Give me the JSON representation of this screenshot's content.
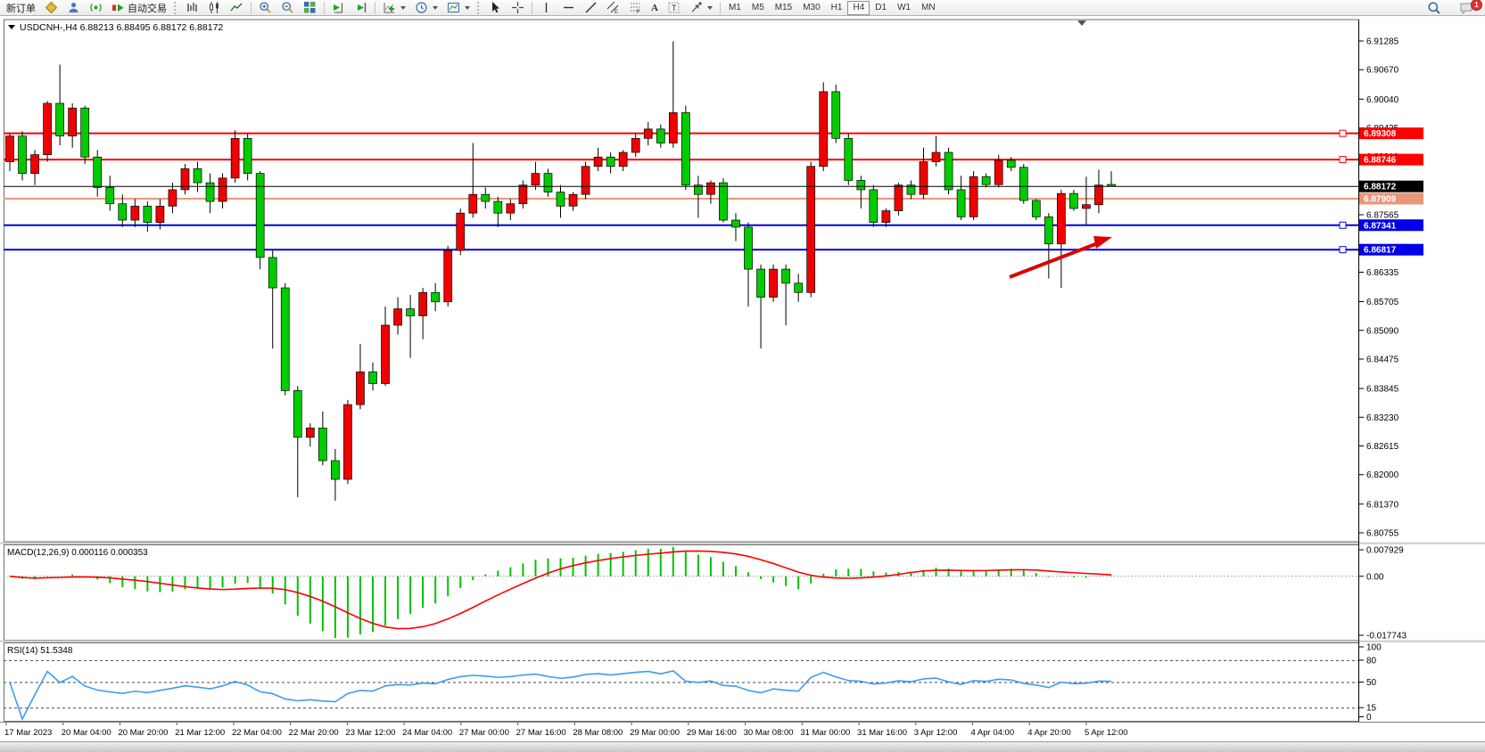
{
  "toolbar": {
    "new_order_label": "新订单",
    "autotrading_label": "自动交易",
    "timeframe_labels": [
      "M1",
      "M5",
      "M15",
      "M30",
      "H1",
      "H4",
      "D1",
      "W1",
      "MN"
    ],
    "active_timeframe": "H4",
    "chat_badge": "1"
  },
  "chart": {
    "title_line": "USDCNH-,H4  6.88213 6.88495 6.88172 6.88172",
    "symbol": "USDCNH-",
    "period": "H4",
    "open": "6.88213",
    "high": "6.88495",
    "low": "6.88172",
    "close": "6.88172",
    "current_price": "6.88172",
    "hlines": [
      {
        "price": "6.89308",
        "color": "red"
      },
      {
        "price": "6.88746",
        "color": "red"
      },
      {
        "price": "6.87909",
        "color": "salmon"
      },
      {
        "price": "6.87341",
        "color": "blue"
      },
      {
        "price": "6.86817",
        "color": "blue"
      }
    ],
    "price_axis_ticks": [
      "6.91285",
      "6.90670",
      "6.90040",
      "6.89425",
      "6.88810",
      "6.88195",
      "6.87565",
      "6.86850",
      "6.86335",
      "6.85705",
      "6.85090",
      "6.84475",
      "6.83845",
      "6.83230",
      "6.82615",
      "6.82000",
      "6.81370",
      "6.80755"
    ],
    "colors": {
      "up_candle": "#F00000",
      "down_candle": "#00CC00",
      "hline_red": "#FE0000",
      "hline_blue": "#0000E8",
      "hline_salmon": "#E9967A",
      "price_line": "#000000",
      "arrow": "#E00000",
      "macd_histogram": "#00C400",
      "macd_signal": "#FF0000",
      "rsi_line": "#3E9BF0"
    }
  },
  "macd_panel": {
    "label": "MACD(12,26,9) 0.000116 0.000353",
    "params": [
      12,
      26,
      9
    ],
    "main_value": "0.000116",
    "signal_value": "0.000353",
    "axis_max": "0.007929",
    "axis_zero": "0.00",
    "axis_min": "-0.017743"
  },
  "rsi_panel": {
    "label": "RSI(14) 51.5348",
    "period": 14,
    "value": "51.5348",
    "level_labels": [
      "100",
      "80",
      "50",
      "15",
      "0"
    ],
    "dashed_levels": [
      80,
      50,
      15
    ]
  },
  "time_axis": {
    "labels": [
      "17 Mar 2023",
      "20 Mar 04:00",
      "20 Mar 20:00",
      "21 Mar 12:00",
      "22 Mar 04:00",
      "22 Mar 20:00",
      "23 Mar 12:00",
      "24 Mar 04:00",
      "27 Mar 00:00",
      "27 Mar 16:00",
      "28 Mar 08:00",
      "29 Mar 00:00",
      "29 Mar 16:00",
      "30 Mar 08:00",
      "31 Mar 00:00",
      "31 Mar 16:00",
      "3 Apr 12:00",
      "4 Apr 04:00",
      "4 Apr 20:00",
      "5 Apr 12:00"
    ]
  },
  "chart_data": {
    "type": "candlestick",
    "symbol": "USDCNH",
    "timeframe": "H4",
    "color_convention": "red-up-green-down",
    "price_range": [
      6.80755,
      6.91285
    ],
    "visible_high": 6.9128,
    "visible_low": 6.8144,
    "horizontal_levels": [
      6.89308,
      6.88746,
      6.87909,
      6.87341,
      6.86817
    ],
    "last_price": 6.88172,
    "indicators": [
      {
        "name": "MACD",
        "params": [
          12,
          26,
          9
        ],
        "current": [
          0.000116,
          0.000353
        ]
      },
      {
        "name": "RSI",
        "params": [
          14
        ],
        "current": 51.5348
      }
    ],
    "candles": [
      [
        6.887,
        6.893,
        6.885,
        6.8925
      ],
      [
        6.8925,
        6.8935,
        6.883,
        6.8845
      ],
      [
        6.8845,
        6.8895,
        6.882,
        6.8885
      ],
      [
        6.8885,
        6.9,
        6.887,
        6.8995
      ],
      [
        6.8995,
        6.9078,
        6.8905,
        6.8925
      ],
      [
        6.8925,
        6.8995,
        6.89,
        6.8985
      ],
      [
        6.8985,
        6.899,
        6.8865,
        6.888
      ],
      [
        6.888,
        6.8895,
        6.8795,
        6.8815
      ],
      [
        6.8815,
        6.884,
        6.8765,
        6.878
      ],
      [
        6.878,
        6.88,
        6.873,
        6.8745
      ],
      [
        6.8745,
        6.879,
        6.873,
        6.8775
      ],
      [
        6.8775,
        6.8785,
        6.872,
        6.874
      ],
      [
        6.874,
        6.879,
        6.8725,
        6.8775
      ],
      [
        6.8775,
        6.8825,
        6.876,
        6.881
      ],
      [
        6.881,
        6.8865,
        6.88,
        6.8855
      ],
      [
        6.8855,
        6.887,
        6.8805,
        6.8825
      ],
      [
        6.8825,
        6.8845,
        6.876,
        6.8785
      ],
      [
        6.8785,
        6.8845,
        6.877,
        6.8835
      ],
      [
        6.8835,
        6.8937,
        6.8825,
        6.892
      ],
      [
        6.892,
        6.893,
        6.883,
        6.8845
      ],
      [
        6.8845,
        6.885,
        6.864,
        6.8665
      ],
      [
        6.8665,
        6.868,
        6.847,
        6.86
      ],
      [
        6.86,
        6.861,
        6.837,
        6.838
      ],
      [
        6.838,
        6.839,
        6.8152,
        6.828
      ],
      [
        6.828,
        6.831,
        6.826,
        6.83
      ],
      [
        6.83,
        6.8335,
        6.822,
        6.823
      ],
      [
        6.823,
        6.8255,
        6.8144,
        6.819
      ],
      [
        6.819,
        6.836,
        6.818,
        6.835
      ],
      [
        6.835,
        6.848,
        6.834,
        6.842
      ],
      [
        6.842,
        6.844,
        6.838,
        6.8395
      ],
      [
        6.8395,
        6.856,
        6.839,
        6.852
      ],
      [
        6.852,
        6.858,
        6.85,
        6.8555
      ],
      [
        6.8555,
        6.8585,
        6.845,
        6.854
      ],
      [
        6.854,
        6.86,
        6.849,
        6.859
      ],
      [
        6.859,
        6.861,
        6.855,
        6.857
      ],
      [
        6.857,
        6.869,
        6.856,
        6.868
      ],
      [
        6.868,
        6.877,
        6.867,
        6.876
      ],
      [
        6.876,
        6.891,
        6.875,
        6.88
      ],
      [
        6.88,
        6.8815,
        6.877,
        6.8785
      ],
      [
        6.8785,
        6.8795,
        6.873,
        6.876
      ],
      [
        6.876,
        6.879,
        6.8745,
        6.878
      ],
      [
        6.878,
        6.883,
        6.877,
        6.882
      ],
      [
        6.882,
        6.887,
        6.881,
        6.8845
      ],
      [
        6.8845,
        6.8855,
        6.8795,
        6.8805
      ],
      [
        6.8805,
        6.882,
        6.875,
        6.8775
      ],
      [
        6.8775,
        6.8805,
        6.8765,
        6.88
      ],
      [
        6.88,
        6.887,
        6.879,
        6.886
      ],
      [
        6.886,
        6.89,
        6.885,
        6.888
      ],
      [
        6.888,
        6.889,
        6.8845,
        6.886
      ],
      [
        6.886,
        6.8895,
        6.885,
        6.889
      ],
      [
        6.889,
        6.893,
        6.888,
        6.892
      ],
      [
        6.892,
        6.8955,
        6.8905,
        6.894
      ],
      [
        6.894,
        6.895,
        6.89,
        6.891
      ],
      [
        6.891,
        6.9128,
        6.89,
        6.8975
      ],
      [
        6.8975,
        6.899,
        6.881,
        6.882
      ],
      [
        6.882,
        6.884,
        6.875,
        6.88
      ],
      [
        6.88,
        6.883,
        6.878,
        6.8825
      ],
      [
        6.8825,
        6.8835,
        6.874,
        6.8745
      ],
      [
        6.8745,
        6.876,
        6.87,
        6.873
      ],
      [
        6.873,
        6.874,
        6.856,
        6.864
      ],
      [
        6.864,
        6.865,
        6.847,
        6.858
      ],
      [
        6.858,
        6.865,
        6.857,
        6.864
      ],
      [
        6.864,
        6.865,
        6.852,
        6.861
      ],
      [
        6.861,
        6.863,
        6.857,
        6.859
      ],
      [
        6.859,
        6.887,
        6.858,
        6.886
      ],
      [
        6.886,
        6.904,
        6.885,
        6.902
      ],
      [
        6.902,
        6.9035,
        6.891,
        6.892
      ],
      [
        6.892,
        6.893,
        6.882,
        6.883
      ],
      [
        6.883,
        6.884,
        6.877,
        6.881
      ],
      [
        6.881,
        6.882,
        6.873,
        6.874
      ],
      [
        6.874,
        6.877,
        6.873,
        6.8765
      ],
      [
        6.8765,
        6.8825,
        6.8755,
        6.882
      ],
      [
        6.882,
        6.883,
        6.879,
        6.88
      ],
      [
        6.88,
        6.89,
        6.879,
        6.887
      ],
      [
        6.887,
        6.8925,
        6.886,
        6.889
      ],
      [
        6.889,
        6.89,
        6.88,
        6.881
      ],
      [
        6.881,
        6.884,
        6.8745,
        6.8752
      ],
      [
        6.8752,
        6.885,
        6.8745,
        6.8838
      ],
      [
        6.8838,
        6.8845,
        6.8815,
        6.8821
      ],
      [
        6.8821,
        6.8885,
        6.8815,
        6.8873
      ],
      [
        6.8873,
        6.888,
        6.885,
        6.8858
      ],
      [
        6.8858,
        6.8865,
        6.878,
        6.8787
      ],
      [
        6.8787,
        6.879,
        6.8745,
        6.8752
      ],
      [
        6.8752,
        6.876,
        6.862,
        6.8694
      ],
      [
        6.8694,
        6.881,
        6.86,
        6.8802
      ],
      [
        6.8802,
        6.881,
        6.8765,
        6.877
      ],
      [
        6.877,
        6.8838,
        6.8735,
        6.8778
      ],
      [
        6.8778,
        6.8853,
        6.876,
        6.882
      ],
      [
        6.88213,
        6.88495,
        6.88172,
        6.88172
      ]
    ]
  }
}
